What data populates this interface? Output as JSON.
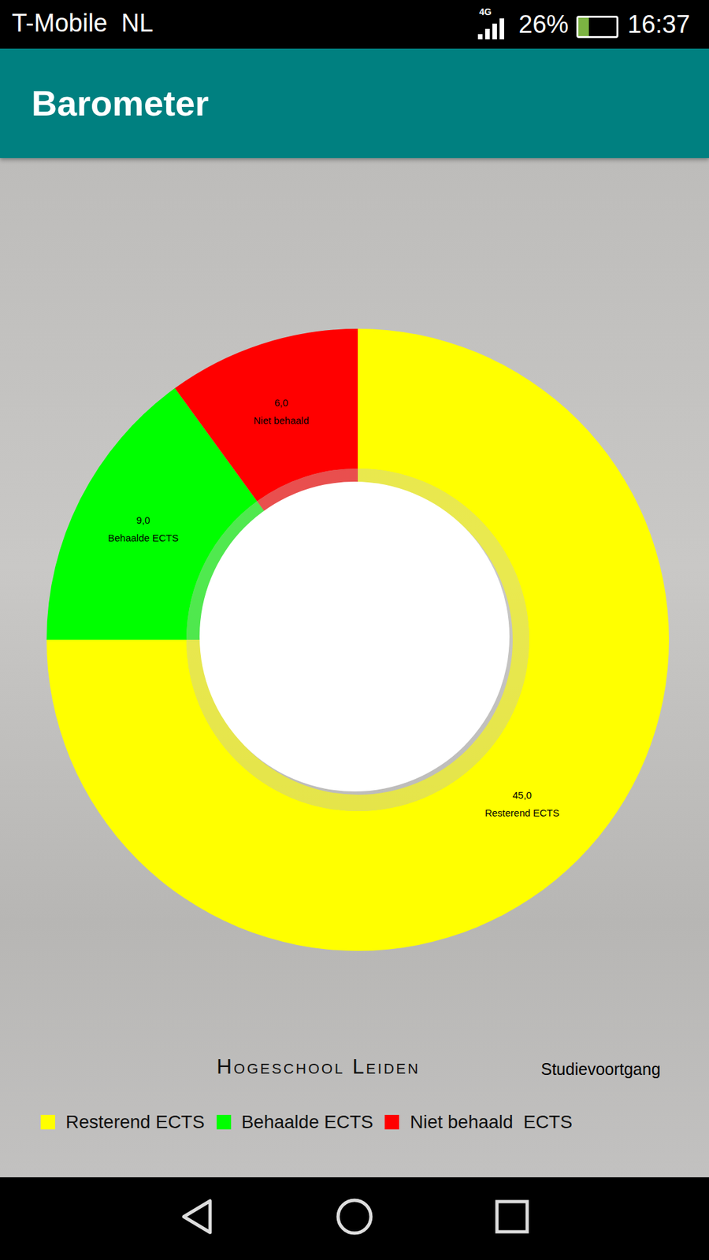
{
  "screen": {
    "status_bar": {
      "carrier": "T-Mobile  NL",
      "network": "4G",
      "battery": "26%",
      "time": "16:37"
    },
    "app_bar_title": "Barometer",
    "logo": "Hogeschool Leiden",
    "caption": "Studievoortgang"
  },
  "chart_data": {
    "type": "pie",
    "categories": [
      "Resterend ECTS",
      "Behaalde ECTS",
      "Niet behaald"
    ],
    "values": [
      45,
      9,
      6
    ],
    "value_labels": [
      "45,0",
      "9,0",
      "6,0"
    ],
    "colors": [
      "#ffff00",
      "#00ff00",
      "#ff0000"
    ],
    "data_labels": true,
    "legend_labels": [
      "Resterend ECTS",
      "Behaalde ECTS",
      "Niet behaald  ECTS"
    ]
  }
}
